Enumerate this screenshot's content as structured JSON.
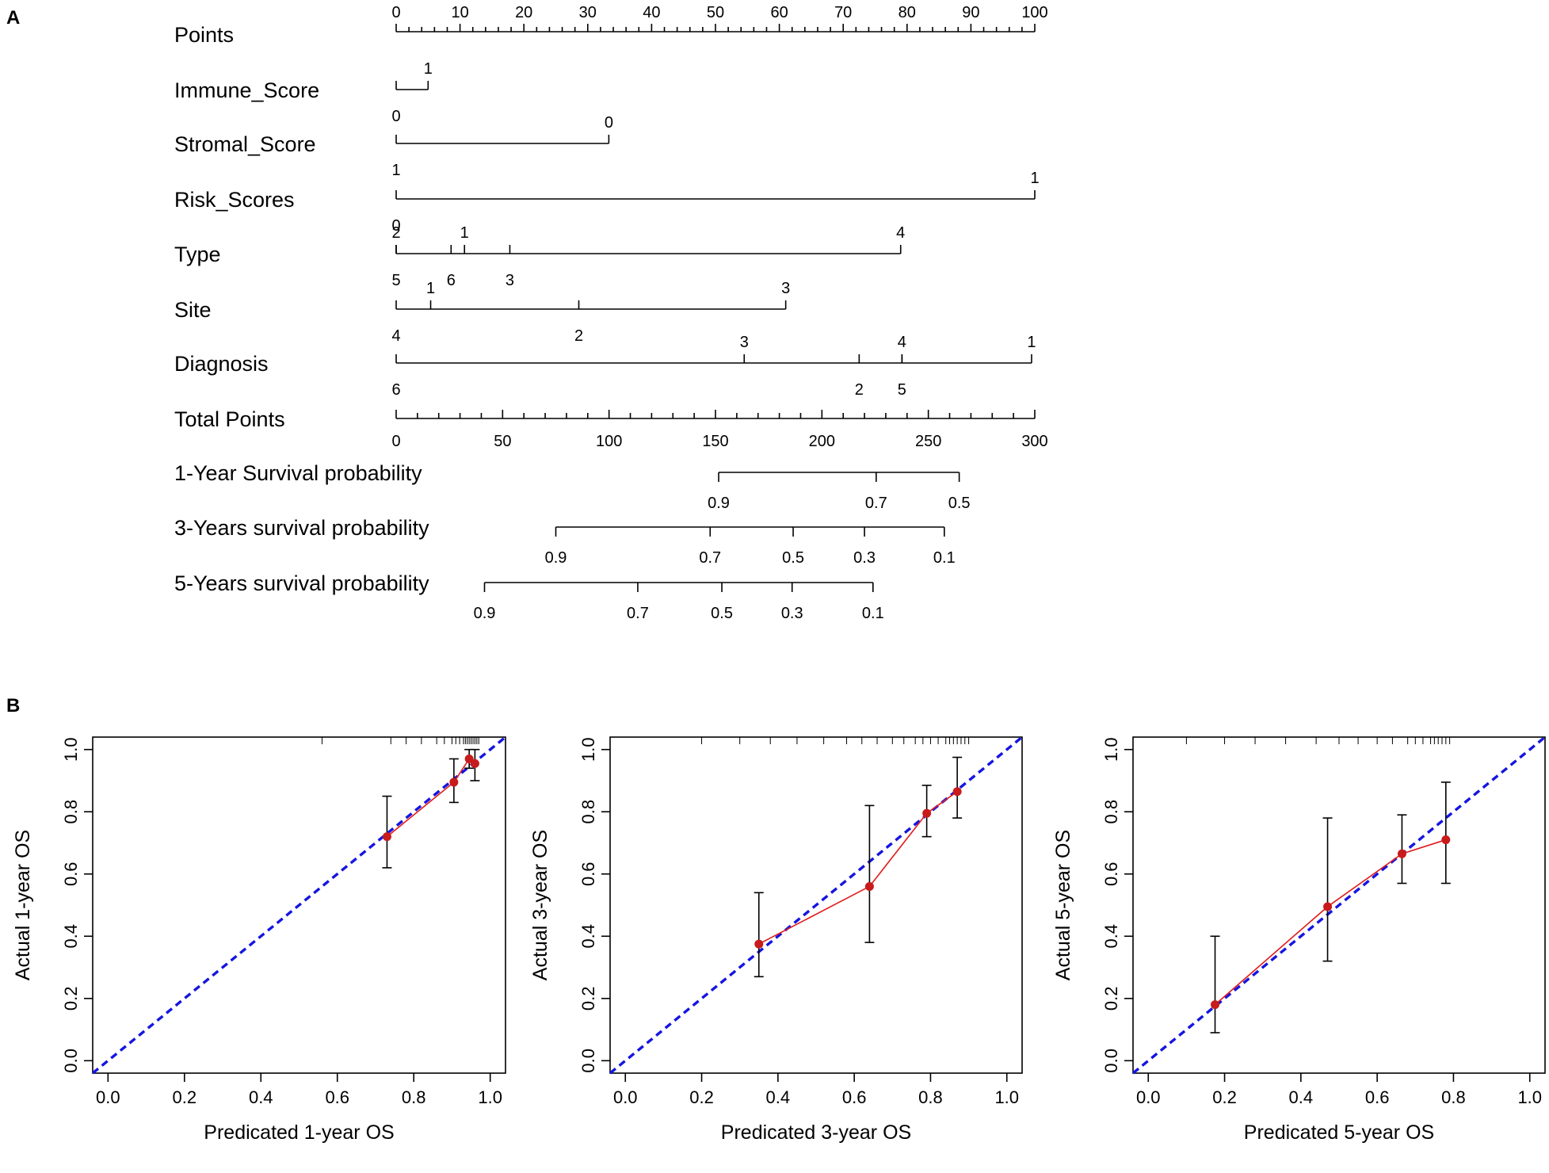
{
  "panel_labels": {
    "a": "A",
    "b": "B"
  },
  "colors": {
    "ink": "#000000",
    "ideal": "#1515e0",
    "observed": "#e01b1b",
    "point": "#c81b1b"
  },
  "chart_data": [
    {
      "type": "nomogram",
      "panel": "A",
      "points_axis": {
        "label": "Points",
        "min": 0,
        "max": 100,
        "ticks": [
          0,
          10,
          20,
          30,
          40,
          50,
          60,
          70,
          80,
          90,
          100
        ],
        "minor_step": 2
      },
      "variables": [
        {
          "label": "Immune_Score",
          "line": [
            0,
            5
          ],
          "ticks": [
            {
              "label": "0",
              "points": 0,
              "side": "below"
            },
            {
              "label": "1",
              "points": 5,
              "side": "above"
            }
          ]
        },
        {
          "label": "Stromal_Score",
          "line": [
            0,
            33.3
          ],
          "ticks": [
            {
              "label": "1",
              "points": 0,
              "side": "below"
            },
            {
              "label": "0",
              "points": 33.3,
              "side": "above"
            }
          ]
        },
        {
          "label": "Risk_Scores",
          "line": [
            0,
            100
          ],
          "ticks": [
            {
              "label": "0",
              "points": 0,
              "side": "below"
            },
            {
              "label": "1",
              "points": 100,
              "side": "above"
            }
          ]
        },
        {
          "label": "Type",
          "line": [
            0,
            79
          ],
          "ticks": [
            {
              "label": "2",
              "points": 0,
              "side": "above"
            },
            {
              "label": "1",
              "points": 10.7,
              "side": "above"
            },
            {
              "label": "4",
              "points": 79,
              "side": "above"
            },
            {
              "label": "5",
              "points": 0,
              "side": "below"
            },
            {
              "label": "6",
              "points": 8.6,
              "side": "below"
            },
            {
              "label": "3",
              "points": 17.8,
              "side": "below"
            }
          ]
        },
        {
          "label": "Site",
          "line": [
            0,
            61
          ],
          "ticks": [
            {
              "label": "1",
              "points": 5.4,
              "side": "above"
            },
            {
              "label": "3",
              "points": 61,
              "side": "above"
            },
            {
              "label": "4",
              "points": 0,
              "side": "below"
            },
            {
              "label": "2",
              "points": 28.6,
              "side": "below"
            }
          ]
        },
        {
          "label": "Diagnosis",
          "line": [
            0,
            99.5
          ],
          "ticks": [
            {
              "label": "3",
              "points": 54.5,
              "side": "above"
            },
            {
              "label": "4",
              "points": 79.2,
              "side": "above"
            },
            {
              "label": "1",
              "points": 99.5,
              "side": "above"
            },
            {
              "label": "6",
              "points": 0,
              "side": "below"
            },
            {
              "label": "2",
              "points": 72.5,
              "side": "below"
            },
            {
              "label": "5",
              "points": 79.2,
              "side": "below"
            }
          ]
        }
      ],
      "total_points_axis": {
        "label": "Total Points",
        "min": 0,
        "max": 300,
        "ticks": [
          0,
          50,
          100,
          150,
          200,
          250,
          300
        ],
        "minor_step": 10
      },
      "survival_scales": [
        {
          "label": "1-Year Survival probability",
          "line": [
            151.5,
            264.5
          ],
          "ticks": [
            {
              "label": "0.9",
              "total": 151.5
            },
            {
              "label": "0.7",
              "total": 225.5
            },
            {
              "label": "0.5",
              "total": 264.5
            }
          ]
        },
        {
          "label": "3-Years survival probability",
          "line": [
            75,
            257.5
          ],
          "ticks": [
            {
              "label": "0.9",
              "total": 75
            },
            {
              "label": "0.7",
              "total": 147.5
            },
            {
              "label": "0.5",
              "total": 186.5
            },
            {
              "label": "0.3",
              "total": 220
            },
            {
              "label": "0.1",
              "total": 257.5
            }
          ]
        },
        {
          "label": "5-Years survival probability",
          "line": [
            41.5,
            224
          ],
          "ticks": [
            {
              "label": "0.9",
              "total": 41.5
            },
            {
              "label": "0.7",
              "total": 113.5
            },
            {
              "label": "0.5",
              "total": 153
            },
            {
              "label": "0.3",
              "total": 186
            },
            {
              "label": "0.1",
              "total": 224
            }
          ]
        }
      ]
    },
    {
      "type": "scatter",
      "subtype": "calibration",
      "panel": "B",
      "xlabel": "Predicated 1-year OS",
      "ylabel": "Actual 1-year OS",
      "xlim": [
        -0.04,
        1.04
      ],
      "ylim": [
        -0.04,
        1.04
      ],
      "ticks": [
        0.0,
        0.2,
        0.4,
        0.6,
        0.8,
        1.0
      ],
      "tick_labels": [
        "0.0",
        "0.2",
        "0.4",
        "0.6",
        "0.8",
        "1.0"
      ],
      "points": [
        {
          "x": 0.73,
          "y": 0.72,
          "lo": 0.62,
          "hi": 0.85
        },
        {
          "x": 0.905,
          "y": 0.895,
          "lo": 0.83,
          "hi": 0.97
        },
        {
          "x": 0.945,
          "y": 0.97,
          "lo": 0.94,
          "hi": 1.0
        },
        {
          "x": 0.96,
          "y": 0.955,
          "lo": 0.9,
          "hi": 1.0
        }
      ],
      "rug": [
        0.56,
        0.74,
        0.78,
        0.82,
        0.86,
        0.88,
        0.9,
        0.91,
        0.92,
        0.93,
        0.935,
        0.94,
        0.945,
        0.95,
        0.955,
        0.96,
        0.965,
        0.97
      ]
    },
    {
      "type": "scatter",
      "subtype": "calibration",
      "panel": "B",
      "xlabel": "Predicated 3-year OS",
      "ylabel": "Actual 3-year OS",
      "xlim": [
        -0.04,
        1.04
      ],
      "ylim": [
        -0.04,
        1.04
      ],
      "ticks": [
        0.0,
        0.2,
        0.4,
        0.6,
        0.8,
        1.0
      ],
      "tick_labels": [
        "0.0",
        "0.2",
        "0.4",
        "0.6",
        "0.8",
        "1.0"
      ],
      "points": [
        {
          "x": 0.35,
          "y": 0.375,
          "lo": 0.27,
          "hi": 0.54
        },
        {
          "x": 0.64,
          "y": 0.56,
          "lo": 0.38,
          "hi": 0.82
        },
        {
          "x": 0.79,
          "y": 0.795,
          "lo": 0.72,
          "hi": 0.885
        },
        {
          "x": 0.87,
          "y": 0.865,
          "lo": 0.78,
          "hi": 0.975
        }
      ],
      "rug": [
        0.2,
        0.3,
        0.38,
        0.45,
        0.52,
        0.58,
        0.62,
        0.66,
        0.7,
        0.73,
        0.76,
        0.78,
        0.8,
        0.82,
        0.84,
        0.85,
        0.86,
        0.87,
        0.88,
        0.89,
        0.9
      ]
    },
    {
      "type": "scatter",
      "subtype": "calibration",
      "panel": "B",
      "xlabel": "Predicated 5-year OS",
      "ylabel": "Actual 5-year OS",
      "xlim": [
        -0.04,
        1.04
      ],
      "ylim": [
        -0.04,
        1.04
      ],
      "ticks": [
        0.0,
        0.2,
        0.4,
        0.6,
        0.8,
        1.0
      ],
      "tick_labels": [
        "0.0",
        "0.2",
        "0.4",
        "0.6",
        "0.8",
        "1.0"
      ],
      "points": [
        {
          "x": 0.175,
          "y": 0.18,
          "lo": 0.09,
          "hi": 0.4
        },
        {
          "x": 0.47,
          "y": 0.495,
          "lo": 0.32,
          "hi": 0.78
        },
        {
          "x": 0.665,
          "y": 0.665,
          "lo": 0.57,
          "hi": 0.79
        },
        {
          "x": 0.78,
          "y": 0.71,
          "lo": 0.57,
          "hi": 0.895
        }
      ],
      "rug": [
        0.1,
        0.2,
        0.28,
        0.36,
        0.44,
        0.5,
        0.55,
        0.6,
        0.64,
        0.68,
        0.7,
        0.72,
        0.74,
        0.75,
        0.76,
        0.77,
        0.78,
        0.79
      ]
    }
  ]
}
